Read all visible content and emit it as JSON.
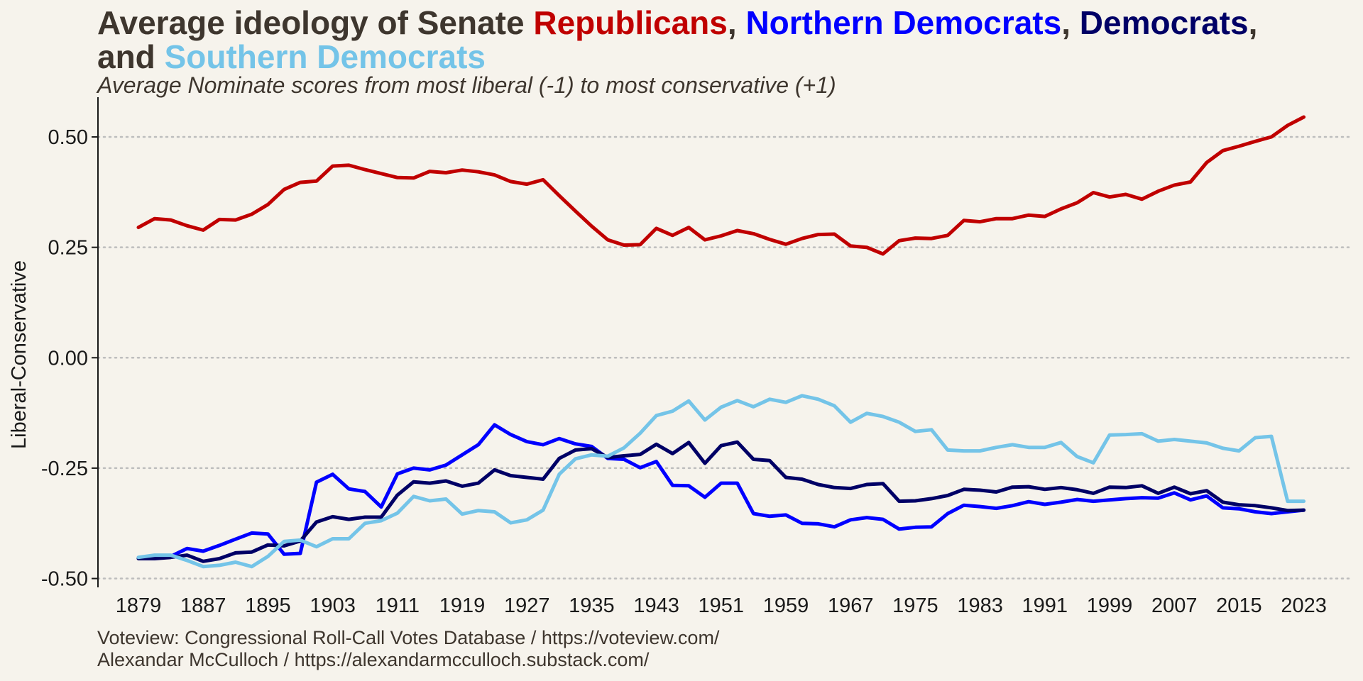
{
  "title": {
    "prefix": "Average ideology of Senate ",
    "republicans": "Republicans",
    "sep1": ", ",
    "northern_democrats": "Northern Democrats",
    "sep2": ", ",
    "democrats": "Democrats",
    "sep3": ",",
    "line2_prefix": "and ",
    "southern_democrats": "Southern Democrats"
  },
  "subtitle": "Average Nominate scores from most liberal (-1) to most conservative (+1)",
  "caption": {
    "line1": "Voteview: Congressional Roll-Call Votes Database / https://voteview.com/",
    "line2": "Alexandar McCulloch / https://alexandarmcculloch.substack.com/"
  },
  "colors": {
    "republicans": "#c00000",
    "northern_democrats": "#0000ff",
    "democrats": "#000066",
    "southern_democrats": "#74c4e8",
    "text": "#3e362e",
    "background": "#f6f3ec",
    "grid": "#bdbdbd"
  },
  "chart_data": {
    "type": "line",
    "title": "Average ideology of Senate Republicans, Northern Democrats, Democrats, and Southern Democrats",
    "subtitle": "Average Nominate scores from most liberal (-1) to most conservative (+1)",
    "xlabel": "",
    "ylabel": "Liberal-Conservative",
    "xlim": [
      1874,
      2029
    ],
    "ylim": [
      -0.52,
      0.59
    ],
    "x_ticks": [
      1879,
      1887,
      1895,
      1903,
      1911,
      1919,
      1927,
      1935,
      1943,
      1951,
      1959,
      1967,
      1975,
      1983,
      1991,
      1999,
      2007,
      2015,
      2023
    ],
    "y_ticks": [
      -0.5,
      -0.25,
      0.0,
      0.25,
      0.5
    ],
    "y_tick_labels": [
      "-0.50",
      "-0.25",
      "0.00",
      "0.25",
      "0.50"
    ],
    "grid": "horizontal dotted",
    "legend": "none (series named in title)",
    "x": [
      1879,
      1881,
      1883,
      1885,
      1887,
      1889,
      1891,
      1893,
      1895,
      1897,
      1899,
      1901,
      1903,
      1905,
      1907,
      1909,
      1911,
      1913,
      1915,
      1917,
      1919,
      1921,
      1923,
      1925,
      1927,
      1929,
      1931,
      1933,
      1935,
      1937,
      1939,
      1941,
      1943,
      1945,
      1947,
      1949,
      1951,
      1953,
      1955,
      1957,
      1959,
      1961,
      1963,
      1965,
      1967,
      1969,
      1971,
      1973,
      1975,
      1977,
      1979,
      1981,
      1983,
      1985,
      1987,
      1989,
      1991,
      1993,
      1995,
      1997,
      1999,
      2001,
      2003,
      2005,
      2007,
      2009,
      2011,
      2013,
      2015,
      2017,
      2019,
      2021,
      2023
    ],
    "series": [
      {
        "name": "Republicans",
        "color": "#c00000",
        "values": [
          0.295,
          0.315,
          0.312,
          0.299,
          0.289,
          0.313,
          0.312,
          0.325,
          0.347,
          0.381,
          0.397,
          0.4,
          0.434,
          0.436,
          0.426,
          0.417,
          0.408,
          0.407,
          0.422,
          0.419,
          0.425,
          0.421,
          0.414,
          0.399,
          0.393,
          0.403,
          0.367,
          0.332,
          0.298,
          0.267,
          0.255,
          0.256,
          0.293,
          0.277,
          0.295,
          0.267,
          0.276,
          0.288,
          0.281,
          0.268,
          0.257,
          0.27,
          0.279,
          0.28,
          0.253,
          0.25,
          0.235,
          0.265,
          0.271,
          0.27,
          0.277,
          0.311,
          0.308,
          0.315,
          0.315,
          0.323,
          0.32,
          0.337,
          0.351,
          0.374,
          0.364,
          0.37,
          0.359,
          0.377,
          0.391,
          0.398,
          0.442,
          0.469,
          0.479,
          0.49,
          0.5,
          0.526,
          0.545
        ]
      },
      {
        "name": "Northern Democrats",
        "color": "#0000ff",
        "values": [
          -0.453,
          -0.451,
          -0.45,
          -0.432,
          -0.438,
          -0.425,
          -0.411,
          -0.397,
          -0.399,
          -0.445,
          -0.443,
          -0.282,
          -0.264,
          -0.297,
          -0.303,
          -0.338,
          -0.263,
          -0.25,
          -0.254,
          -0.243,
          -0.22,
          -0.197,
          -0.152,
          -0.174,
          -0.19,
          -0.197,
          -0.183,
          -0.195,
          -0.201,
          -0.228,
          -0.23,
          -0.249,
          -0.235,
          -0.289,
          -0.29,
          -0.316,
          -0.284,
          -0.284,
          -0.353,
          -0.359,
          -0.356,
          -0.375,
          -0.376,
          -0.383,
          -0.367,
          -0.362,
          -0.366,
          -0.388,
          -0.384,
          -0.383,
          -0.353,
          -0.334,
          -0.337,
          -0.341,
          -0.335,
          -0.326,
          -0.332,
          -0.327,
          -0.321,
          -0.325,
          -0.322,
          -0.319,
          -0.317,
          -0.318,
          -0.306,
          -0.322,
          -0.313,
          -0.34,
          -0.342,
          -0.349,
          -0.353,
          -0.349,
          -0.345
        ]
      },
      {
        "name": "Democrats",
        "color": "#000066",
        "values": [
          -0.455,
          -0.455,
          -0.452,
          -0.447,
          -0.461,
          -0.455,
          -0.442,
          -0.44,
          -0.424,
          -0.426,
          -0.415,
          -0.372,
          -0.36,
          -0.366,
          -0.361,
          -0.361,
          -0.311,
          -0.281,
          -0.284,
          -0.279,
          -0.291,
          -0.284,
          -0.254,
          -0.267,
          -0.271,
          -0.275,
          -0.228,
          -0.209,
          -0.206,
          -0.226,
          -0.222,
          -0.219,
          -0.196,
          -0.217,
          -0.192,
          -0.239,
          -0.199,
          -0.191,
          -0.23,
          -0.233,
          -0.271,
          -0.275,
          -0.287,
          -0.294,
          -0.296,
          -0.287,
          -0.285,
          -0.325,
          -0.324,
          -0.319,
          -0.312,
          -0.298,
          -0.3,
          -0.304,
          -0.293,
          -0.292,
          -0.298,
          -0.294,
          -0.299,
          -0.307,
          -0.293,
          -0.294,
          -0.29,
          -0.307,
          -0.293,
          -0.308,
          -0.301,
          -0.327,
          -0.333,
          -0.335,
          -0.34,
          -0.346,
          -0.345
        ]
      },
      {
        "name": "Southern Democrats",
        "color": "#74c4e8",
        "values": [
          -0.452,
          -0.447,
          -0.447,
          -0.459,
          -0.473,
          -0.47,
          -0.463,
          -0.473,
          -0.45,
          -0.416,
          -0.413,
          -0.428,
          -0.41,
          -0.41,
          -0.375,
          -0.369,
          -0.352,
          -0.314,
          -0.324,
          -0.32,
          -0.354,
          -0.346,
          -0.349,
          -0.374,
          -0.367,
          -0.345,
          -0.264,
          -0.229,
          -0.22,
          -0.223,
          -0.204,
          -0.171,
          -0.131,
          -0.121,
          -0.098,
          -0.141,
          -0.112,
          -0.097,
          -0.111,
          -0.094,
          -0.101,
          -0.086,
          -0.094,
          -0.109,
          -0.146,
          -0.126,
          -0.133,
          -0.146,
          -0.167,
          -0.163,
          -0.209,
          -0.211,
          -0.211,
          -0.203,
          -0.197,
          -0.203,
          -0.203,
          -0.192,
          -0.224,
          -0.238,
          -0.175,
          -0.174,
          -0.172,
          -0.189,
          -0.185,
          -0.189,
          -0.193,
          -0.205,
          -0.211,
          -0.181,
          -0.178,
          -0.325,
          -0.325
        ]
      }
    ]
  }
}
